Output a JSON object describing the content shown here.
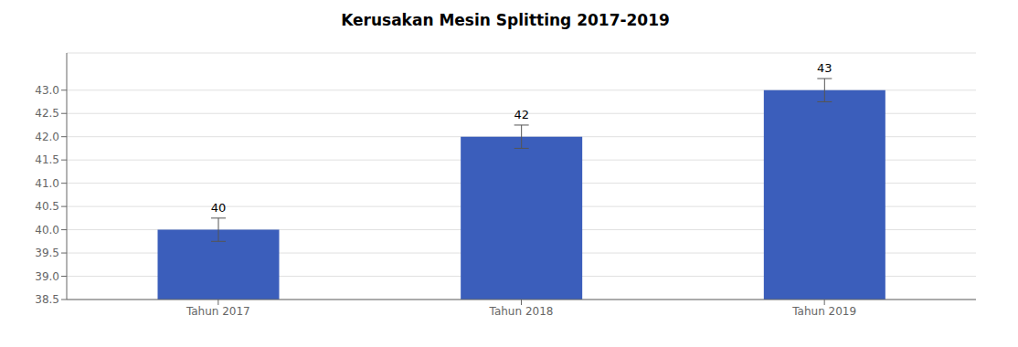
{
  "chart_data": {
    "type": "bar",
    "title": "Kerusakan Mesin Splitting 2017-2019",
    "categories": [
      "Tahun 2017",
      "Tahun 2018",
      "Tahun 2019"
    ],
    "values": [
      40,
      42,
      43
    ],
    "errors": [
      0.25,
      0.25,
      0.25
    ],
    "color": "#3B5EBB",
    "ylim": [
      38.5,
      43.8
    ],
    "yticks": [
      38.5,
      {
        "value": 39,
        "label": "39.0"
      },
      39.5,
      {
        "value": 40,
        "label": "40.0"
      },
      40.5,
      {
        "value": 41,
        "label": "41.0"
      },
      41.5,
      {
        "value": 42,
        "label": "42.0"
      },
      42.5,
      {
        "value": 43,
        "label": "43.0"
      }
    ],
    "grid": true,
    "data_labels": true
  }
}
